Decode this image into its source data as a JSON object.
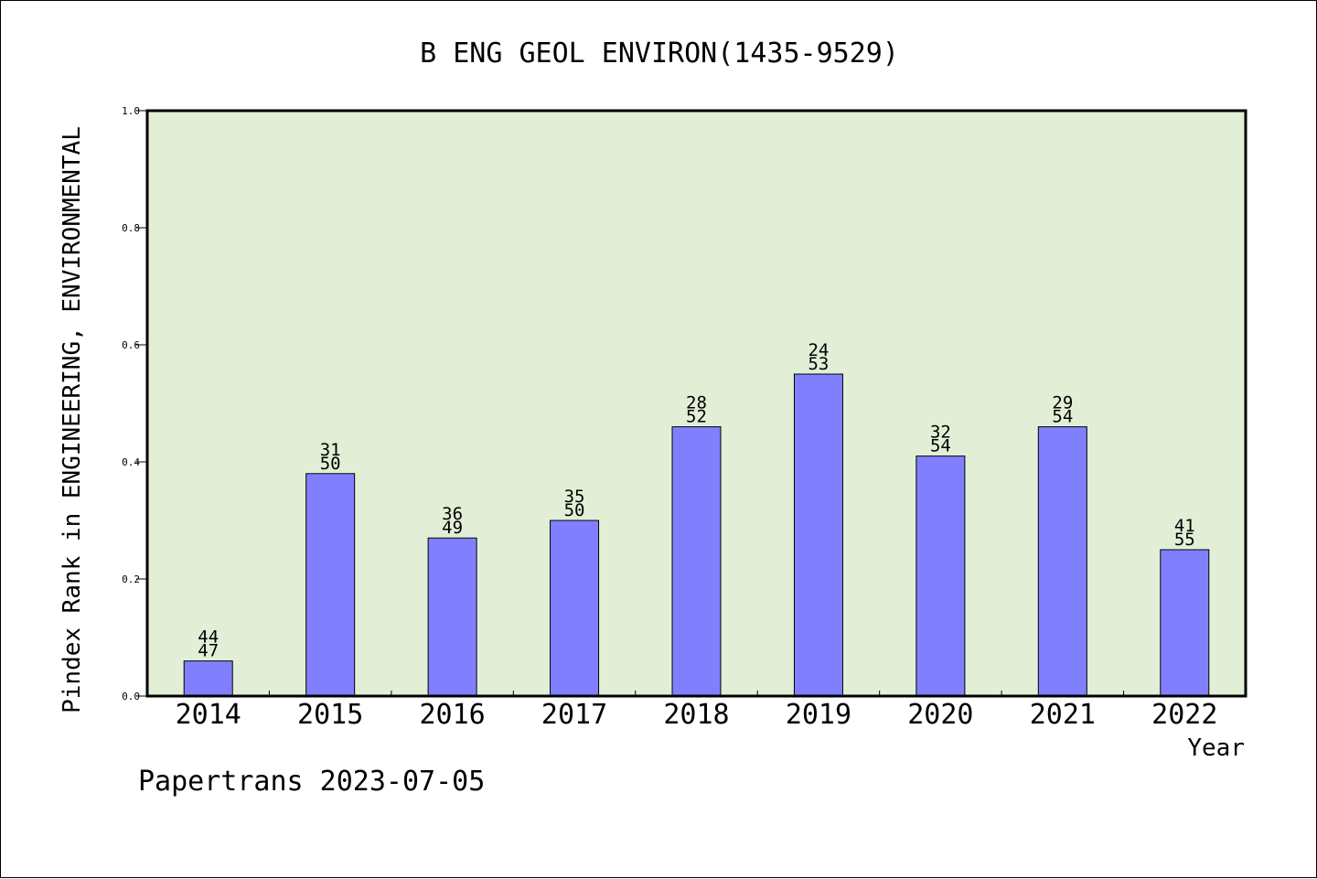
{
  "chart_data": {
    "type": "bar",
    "title": "B ENG GEOL ENVIRON(1435-9529)",
    "xlabel": "Year",
    "ylabel": "Pindex Rank in ENGINEERING, ENVIRONMENTAL",
    "categories": [
      "2014",
      "2015",
      "2016",
      "2017",
      "2018",
      "2019",
      "2020",
      "2021",
      "2022"
    ],
    "values": [
      0.06,
      0.38,
      0.27,
      0.3,
      0.46,
      0.55,
      0.41,
      0.46,
      0.25
    ],
    "rank_labels": [
      "44",
      "31",
      "36",
      "35",
      "28",
      "24",
      "32",
      "29",
      "41"
    ],
    "total_labels": [
      "47",
      "50",
      "49",
      "50",
      "52",
      "53",
      "54",
      "54",
      "55"
    ],
    "ylim": [
      0.0,
      1.0
    ],
    "yticks": [
      "0.0",
      "0.2",
      "0.4",
      "0.6",
      "0.8",
      "1.0"
    ],
    "grid": false,
    "colors": {
      "bar": "#8080ff",
      "plot_background": "#e2efd6",
      "axis": "#000000"
    }
  },
  "footer": {
    "text": "Papertrans 2023-07-05"
  }
}
